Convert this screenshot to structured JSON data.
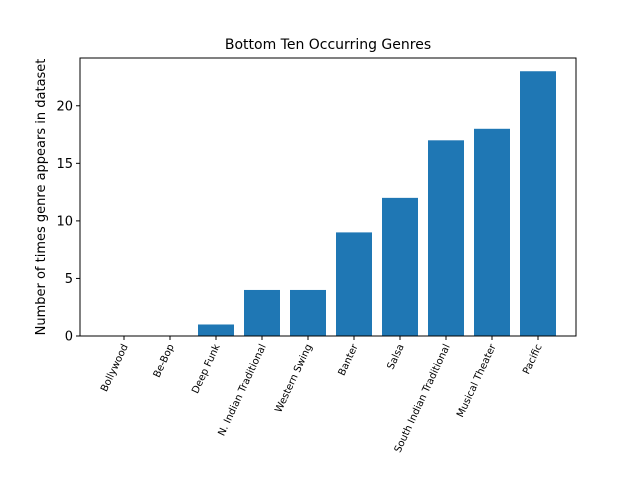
{
  "chart_data": {
    "type": "bar",
    "title": "Bottom Ten Occurring Genres",
    "xlabel": "",
    "ylabel": "Number of times genre appears in dataset",
    "categories": [
      "Bollywood",
      "Be-Bop",
      "Deep Funk",
      "N. Indian Traditional",
      "Western Swing",
      "Banter",
      "Salsa",
      "South Indian Traditional",
      "Musical Theater",
      "Pacific"
    ],
    "values": [
      0,
      0,
      1,
      4,
      4,
      9,
      12,
      17,
      18,
      23
    ],
    "ylim": [
      0,
      24.15
    ],
    "yticks": [
      0,
      5,
      10,
      15,
      20
    ],
    "grid": false,
    "bar_color": "#1f77b4",
    "xtick_rotation_deg": 65
  }
}
